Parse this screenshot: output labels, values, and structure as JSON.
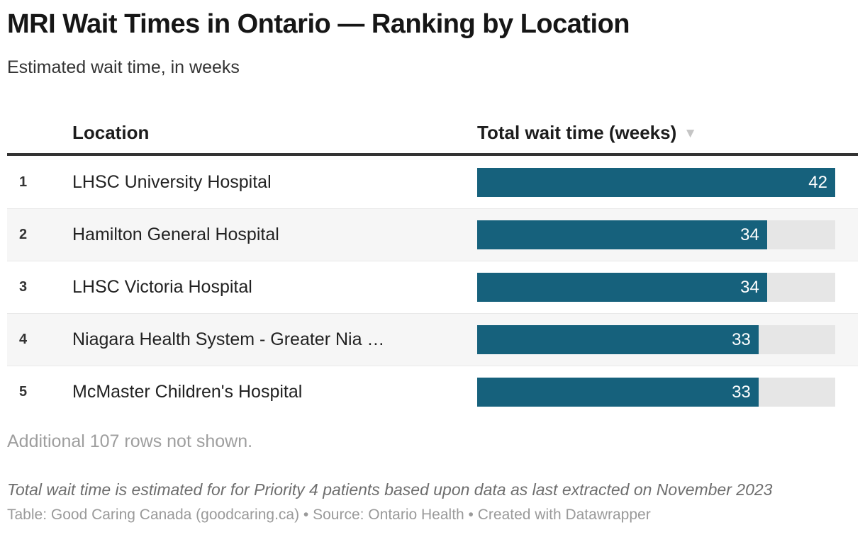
{
  "header": {
    "title": "MRI Wait Times in Ontario — Ranking by Location",
    "subtitle": "Estimated wait time, in weeks"
  },
  "table": {
    "columns": {
      "location_label": "Location",
      "value_label": "Total wait time (weeks)",
      "sort_icon": "▼"
    },
    "max_value": 42,
    "rows": [
      {
        "rank": "1",
        "location": "LHSC University Hospital",
        "value": 42
      },
      {
        "rank": "2",
        "location": "Hamilton General Hospital",
        "value": 34
      },
      {
        "rank": "3",
        "location": "LHSC Victoria Hospital",
        "value": 34
      },
      {
        "rank": "4",
        "location": "Niagara Health System - Greater Nia …",
        "value": 33
      },
      {
        "rank": "5",
        "location": "McMaster Children's Hospital",
        "value": 33
      }
    ],
    "more_rows_note": "Additional 107 rows not shown."
  },
  "footer": {
    "note": "Total wait time is estimated for for Priority 4 patients based upon data as last extracted on November 2023",
    "byline": "Table: Good Caring Canada (goodcaring.ca) • Source: Ontario Health • Created with Datawrapper"
  },
  "colors": {
    "bar": "#16617c",
    "bar_track": "#e6e6e6",
    "row_stripe": "#f6f6f6",
    "header_rule": "#333333",
    "muted_text": "#9e9e9e"
  },
  "chart_data": {
    "type": "bar",
    "orientation": "horizontal",
    "title": "MRI Wait Times in Ontario — Ranking by Location",
    "subtitle": "Estimated wait time, in weeks",
    "value_axis_label": "Total wait time (weeks)",
    "sort": "descending",
    "ranks": [
      1,
      2,
      3,
      4,
      5
    ],
    "categories": [
      "LHSC University Hospital",
      "Hamilton General Hospital",
      "LHSC Victoria Hospital",
      "Niagara Health System - Greater Nia …",
      "McMaster Children's Hospital"
    ],
    "values": [
      42,
      34,
      34,
      33,
      33
    ],
    "xlim": [
      0,
      42
    ],
    "bar_color": "#16617c",
    "annotations": [
      "Additional 107 rows not shown.",
      "Total wait time is estimated for for Priority 4 patients based upon data as last extracted on November 2023",
      "Table: Good Caring Canada (goodcaring.ca) • Source: Ontario Health • Created with Datawrapper"
    ]
  }
}
